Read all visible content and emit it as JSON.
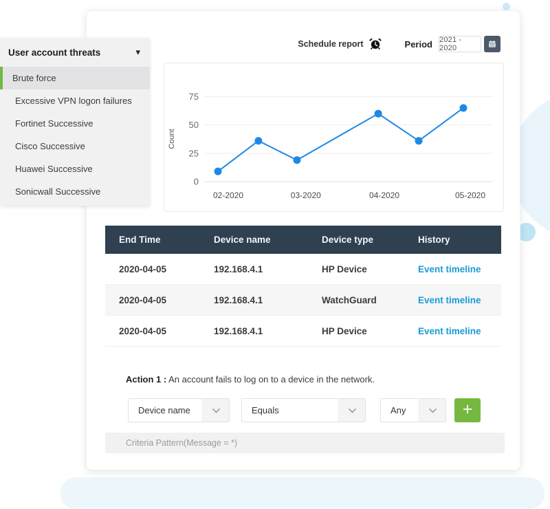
{
  "sidebar": {
    "title": "User account threats",
    "items": [
      {
        "label": "Brute force",
        "selected": true
      },
      {
        "label": "Excessive VPN logon failures",
        "selected": false
      },
      {
        "label": "Fortinet Successive",
        "selected": false
      },
      {
        "label": "Cisco Successive",
        "selected": false
      },
      {
        "label": "Huawei Successive",
        "selected": false
      },
      {
        "label": "Sonicwall Successive",
        "selected": false
      }
    ]
  },
  "header": {
    "schedule_report_label": "Schedule report",
    "period_label": "Period",
    "period_value": "2021 - 2020"
  },
  "chart_data": {
    "type": "line",
    "title": "",
    "xlabel": "",
    "ylabel": "Count",
    "ylim": [
      0,
      75
    ],
    "y_ticks": [
      0,
      25,
      50,
      75
    ],
    "grid": "horizontal",
    "legend": "none",
    "x_tick_labels": [
      "02-2020",
      "03-2020",
      "04-2020",
      "05-2020"
    ],
    "x_tick_frac": [
      0.042,
      0.358,
      0.678,
      1.028
    ],
    "series": [
      {
        "name": "Count",
        "color": "#1e88e5",
        "points": [
          {
            "x": "2020-02-01",
            "x_frac": 0.0,
            "value": 9
          },
          {
            "x": "2020-02-14",
            "x_frac": 0.165,
            "value": 36
          },
          {
            "x": "2020-03-01",
            "x_frac": 0.322,
            "value": 19
          },
          {
            "x": "2020-04-01",
            "x_frac": 0.653,
            "value": 60
          },
          {
            "x": "2020-04-14",
            "x_frac": 0.818,
            "value": 36
          },
          {
            "x": "2020-05-01",
            "x_frac": 1.0,
            "value": 65
          }
        ]
      }
    ]
  },
  "table": {
    "columns": [
      "End Time",
      "Device name",
      "Device type",
      "History"
    ],
    "rows": [
      {
        "end_time": "2020-04-05",
        "device_name": "192.168.4.1",
        "device_type": "HP Device",
        "history": "Event timeline"
      },
      {
        "end_time": "2020-04-05",
        "device_name": "192.168.4.1",
        "device_type": "WatchGuard",
        "history": "Event timeline"
      },
      {
        "end_time": "2020-04-05",
        "device_name": "192.168.4.1",
        "device_type": "HP Device",
        "history": "Event timeline"
      }
    ]
  },
  "action": {
    "label": "Action 1 :",
    "description": "An account fails to log on to a device in the network.",
    "filters": [
      {
        "value": "Device name"
      },
      {
        "value": "Equals"
      },
      {
        "value": "Any"
      }
    ],
    "add_button_label": "+",
    "criteria_text": "Criteria Pattern(Message = *)"
  },
  "colors": {
    "accent_blue": "#1e88e5",
    "link_blue": "#1c9ad6",
    "green": "#76b83f",
    "table_header": "#2f4050",
    "sidebar_bg": "#f1f1f2",
    "selected_bar_green": "#6fb944"
  }
}
